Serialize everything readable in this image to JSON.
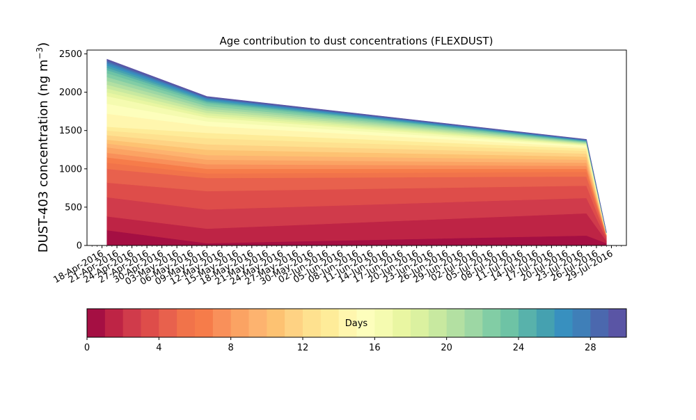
{
  "chart_data": {
    "type": "area",
    "title": "Age contribution to dust concentrations (FLEXDUST)",
    "ylabel": "DUST-403 concentration (ng m",
    "ylabel_sup": "−3",
    "ylabel_close": ")",
    "xlabel": "",
    "ylim": [
      0,
      2550
    ],
    "yticks": [
      0,
      500,
      1000,
      1500,
      2000,
      2500
    ],
    "xlim": [
      "2016-04-15",
      "2016-08-01"
    ],
    "xtick_dates": [
      "2016-04-18",
      "2016-04-21",
      "2016-04-24",
      "2016-04-27",
      "2016-04-30",
      "2016-05-03",
      "2016-05-06",
      "2016-05-09",
      "2016-05-12",
      "2016-05-15",
      "2016-05-18",
      "2016-05-21",
      "2016-05-24",
      "2016-05-27",
      "2016-05-30",
      "2016-06-02",
      "2016-06-05",
      "2016-06-08",
      "2016-06-11",
      "2016-06-14",
      "2016-06-17",
      "2016-06-20",
      "2016-06-23",
      "2016-06-26",
      "2016-06-29",
      "2016-07-02",
      "2016-07-05",
      "2016-07-08",
      "2016-07-11",
      "2016-07-14",
      "2016-07-17",
      "2016-07-20",
      "2016-07-23",
      "2016-07-26",
      "2016-07-29"
    ],
    "xtick_labels": [
      "18-Apr-2016",
      "21-Apr-2016",
      "24-Apr-2016",
      "27-Apr-2016",
      "30-Apr-2016",
      "03-May-2016",
      "06-May-2016",
      "09-May-2016",
      "12-May-2016",
      "15-May-2016",
      "18-May-2016",
      "21-May-2016",
      "24-May-2016",
      "27-May-2016",
      "30-May-2016",
      "02-Jun-2016",
      "05-Jun-2016",
      "08-Jun-2016",
      "11-Jun-2016",
      "14-Jun-2016",
      "17-Jun-2016",
      "20-Jun-2016",
      "23-Jun-2016",
      "26-Jun-2016",
      "29-Jun-2016",
      "02-Jul-2016",
      "05-Jul-2016",
      "08-Jul-2016",
      "11-Jul-2016",
      "14-Jul-2016",
      "17-Jul-2016",
      "20-Jul-2016",
      "23-Jul-2016",
      "26-Jul-2016",
      "29-Jul-2016"
    ],
    "x": [
      "2016-04-19",
      "2016-05-09",
      "2016-07-24",
      "2016-07-28"
    ],
    "cumulative_levels": [
      [
        0,
        0,
        0,
        0
      ],
      [
        200,
        30,
        130,
        30
      ],
      [
        380,
        220,
        420,
        60
      ],
      [
        630,
        470,
        620,
        90
      ],
      [
        820,
        710,
        780,
        115
      ],
      [
        1000,
        880,
        900,
        125
      ],
      [
        1080,
        940,
        960,
        130
      ],
      [
        1150,
        1000,
        1000,
        133
      ],
      [
        1210,
        1060,
        1040,
        136
      ],
      [
        1280,
        1120,
        1080,
        139
      ],
      [
        1330,
        1180,
        1120,
        142
      ],
      [
        1380,
        1250,
        1160,
        145
      ],
      [
        1440,
        1320,
        1200,
        148
      ],
      [
        1500,
        1400,
        1235,
        151
      ],
      [
        1550,
        1470,
        1265,
        154
      ],
      [
        1720,
        1560,
        1285,
        156
      ],
      [
        1850,
        1620,
        1300,
        158
      ],
      [
        1950,
        1670,
        1310,
        159
      ],
      [
        2000,
        1700,
        1318,
        160
      ],
      [
        2050,
        1730,
        1325,
        161
      ],
      [
        2100,
        1760,
        1332,
        162
      ],
      [
        2150,
        1790,
        1339,
        163
      ],
      [
        2200,
        1820,
        1346,
        164
      ],
      [
        2250,
        1850,
        1352,
        165
      ],
      [
        2290,
        1870,
        1358,
        166
      ],
      [
        2320,
        1885,
        1363,
        167
      ],
      [
        2350,
        1900,
        1368,
        168
      ],
      [
        2375,
        1915,
        1372,
        169
      ],
      [
        2395,
        1925,
        1376,
        170
      ],
      [
        2415,
        1935,
        1380,
        171
      ],
      [
        2430,
        1945,
        1385,
        172
      ]
    ],
    "colorbar": {
      "label": "Days",
      "ticks": [
        0,
        4,
        8,
        12,
        16,
        20,
        24,
        28
      ],
      "range": [
        0,
        30
      ],
      "colors": [
        "#a50f43",
        "#be2445",
        "#d03b4b",
        "#de4d4a",
        "#e8614d",
        "#f1734a",
        "#f67c4a",
        "#f9905a",
        "#fba363",
        "#fdb36f",
        "#fdc272",
        "#fed283",
        "#fee18f",
        "#feec99",
        "#fff6ae",
        "#fdfebc",
        "#f5fbb0",
        "#e9f6a2",
        "#dbf1a0",
        "#c8e9a0",
        "#b3e0a2",
        "#9dd7a4",
        "#82cda5",
        "#6ec3a5",
        "#58b2ab",
        "#45a1b0",
        "#3890bf",
        "#3f7fb8",
        "#4b68ae",
        "#5a55a5"
      ]
    }
  }
}
